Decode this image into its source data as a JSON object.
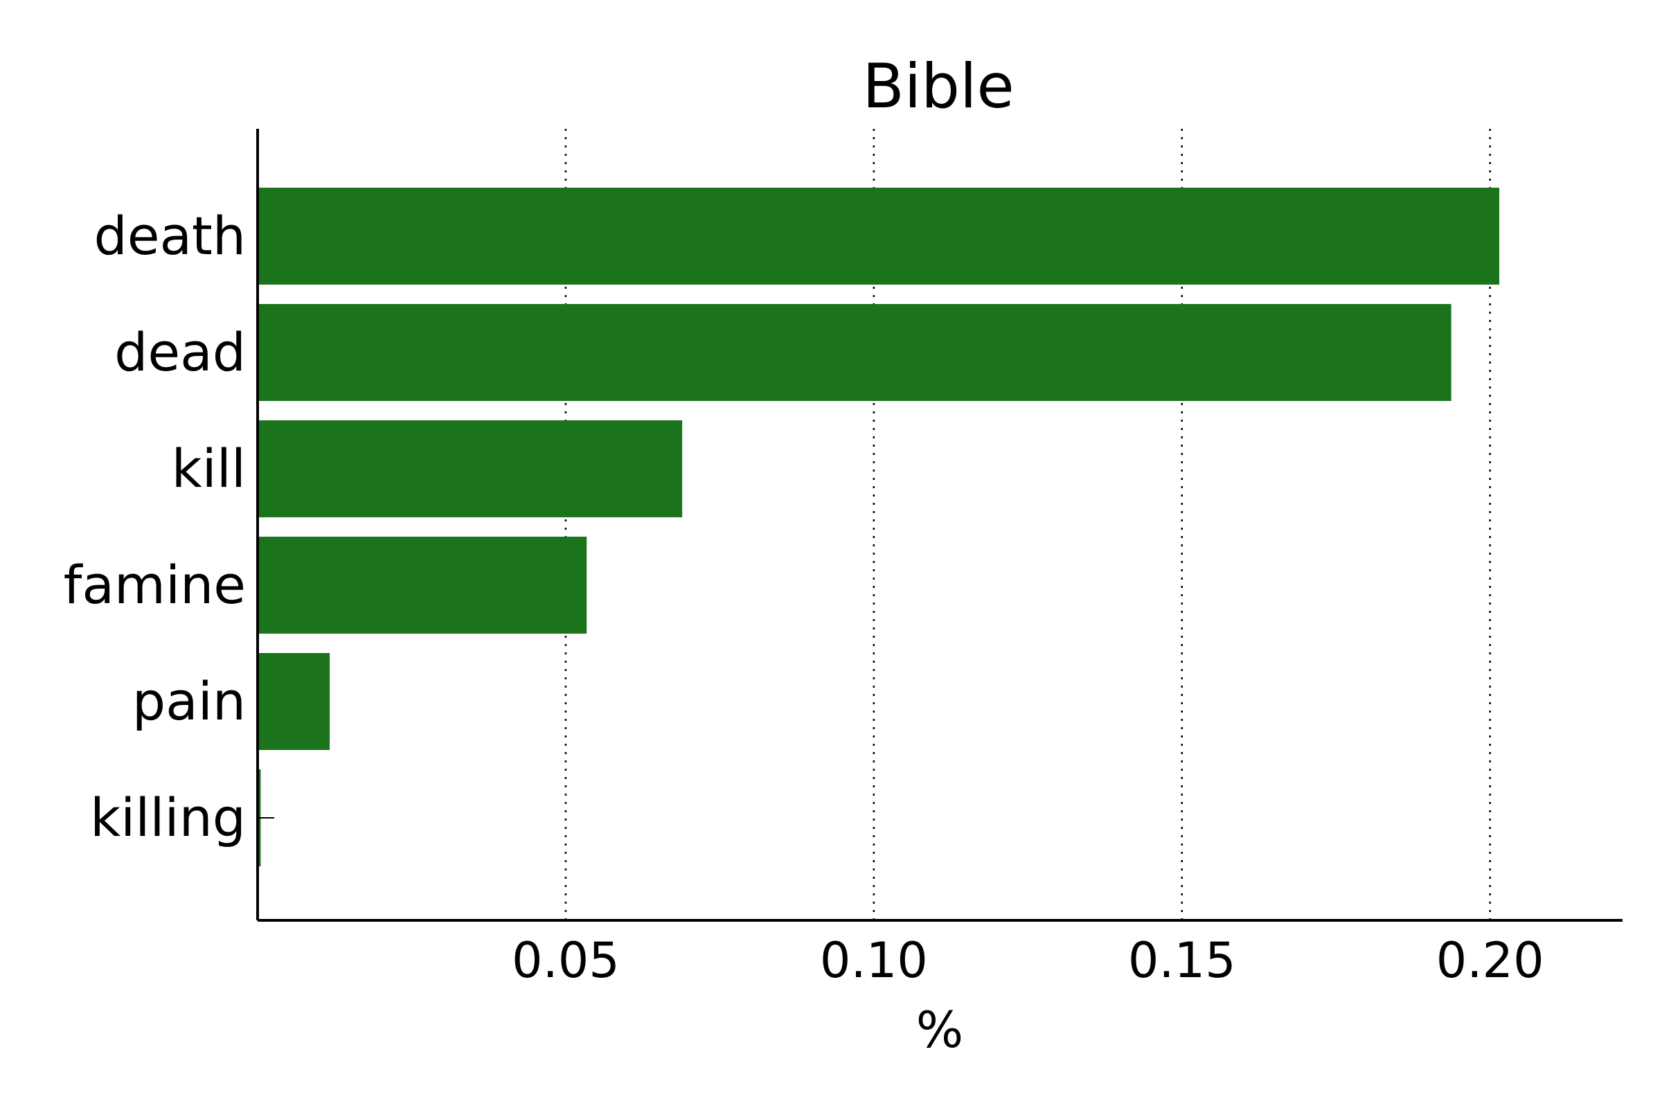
{
  "chart_data": {
    "type": "bar",
    "orientation": "horizontal",
    "title": "Bible",
    "xlabel": "%",
    "ylabel": "",
    "categories": [
      "death",
      "dead",
      "kill",
      "famine",
      "pain",
      "killing"
    ],
    "values": [
      0.2015,
      0.1937,
      0.0689,
      0.0534,
      0.0117,
      0.0005
    ],
    "xlim": [
      0.0,
      0.2215
    ],
    "xticks": [
      0.05,
      0.1,
      0.15,
      0.2
    ],
    "xtick_labels": [
      "0.05",
      "0.10",
      "0.15",
      "0.20"
    ],
    "grid": "x-dotted",
    "bar_color": "#1b731b",
    "legend": "none"
  }
}
